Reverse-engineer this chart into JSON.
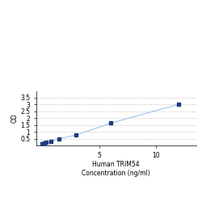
{
  "x": [
    0,
    0.047,
    0.094,
    0.188,
    0.375,
    0.75,
    1.5,
    3,
    6,
    12
  ],
  "y": [
    0.118,
    0.127,
    0.148,
    0.176,
    0.214,
    0.312,
    0.492,
    0.762,
    1.63,
    3.02
  ],
  "line_color": "#a8c8e8",
  "marker_color": "#1f3d7a",
  "marker_size": 3.5,
  "xlabel_line1": "Human TRIM54",
  "xlabel_line2": "Concentration (ng/ml)",
  "ylabel": "OD",
  "xlim": [
    -0.5,
    13.5
  ],
  "ylim": [
    0,
    4.0
  ],
  "yticks": [
    0.5,
    1.0,
    1.5,
    2.0,
    2.5,
    3.0,
    3.5
  ],
  "ytick_labels": [
    "0.5",
    "1",
    "1.5",
    "2",
    "2.5",
    "3",
    "3.5"
  ],
  "xticks": [
    5,
    10
  ],
  "xtick_labels": [
    "5",
    "10"
  ],
  "grid_color": "#cccccc",
  "background_color": "#ffffff",
  "label_fontsize": 5.5,
  "tick_fontsize": 5.5
}
